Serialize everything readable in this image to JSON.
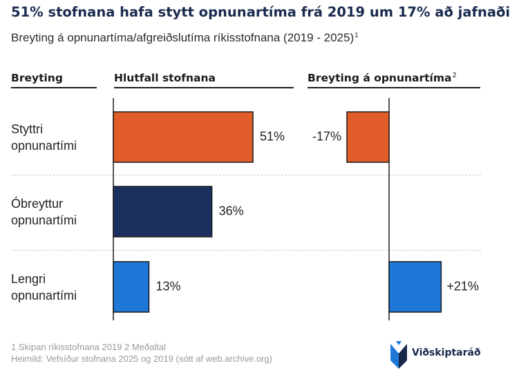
{
  "title": "51% stofnana hafa stytt opnunartíma frá 2019 um 17% að jafnaði",
  "subtitle": "Breyting á opnunartíma/afgreiðslutíma ríkisstofnana (2019 - 2025)",
  "subtitle_sup": "1",
  "columns": {
    "change": "Breyting",
    "share": "Hlutfall stofnana",
    "hours": "Breyting á opnunartíma",
    "hours_sup": "2"
  },
  "rows": [
    {
      "label_line1": "Styttri",
      "label_line2": "opnunartími",
      "share_label": "51%",
      "hours_label": "-17%"
    },
    {
      "label_line1": "Óbreyttur",
      "label_line2": "opnunartími",
      "share_label": "36%",
      "hours_label": ""
    },
    {
      "label_line1": "Lengri",
      "label_line2": "opnunartími",
      "share_label": "13%",
      "hours_label": "+21%"
    }
  ],
  "chart_data": [
    {
      "type": "bar",
      "orientation": "horizontal",
      "title": "Hlutfall stofnana",
      "categories": [
        "Styttri opnunartími",
        "Óbreyttur opnunartími",
        "Lengri opnunartími"
      ],
      "values": [
        51,
        36,
        13
      ],
      "unit": "%",
      "xlim": [
        0,
        60
      ],
      "colors": [
        "#e05d2a",
        "#1b305f",
        "#1f77d8"
      ]
    },
    {
      "type": "bar",
      "orientation": "horizontal",
      "title": "Breyting á opnunartíma",
      "categories": [
        "Styttri opnunartími",
        "Lengri opnunartími"
      ],
      "values": [
        -17,
        21
      ],
      "unit": "%",
      "xlim": [
        -20,
        25
      ],
      "colors": [
        "#e05d2a",
        "#1f77d8"
      ]
    }
  ],
  "footnote": {
    "line1": "1 Skipan ríkisstofnana 2019 2 Meðaltal",
    "line2": "Heimild: Vefsíður stofnana 2025 og 2019 (sótt af web.archive.org)"
  },
  "logo": {
    "text": "Viðskiptaráð"
  },
  "colors": {
    "shorter": "#e05d2a",
    "unchanged": "#1b305f",
    "longer": "#1f77d8",
    "bar_stroke": "#1a1a1a",
    "title": "#1a2b4f"
  }
}
